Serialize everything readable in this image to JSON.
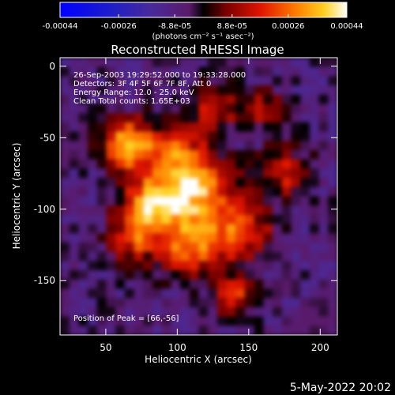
{
  "chart_data": {
    "type": "heatmap",
    "title": "Reconstructed RHESSI Image",
    "xlabel": "Heliocentric X (arcsec)",
    "ylabel": "Heliocentric Y (arcsec)",
    "xlim": [
      18,
      212
    ],
    "ylim": [
      -188,
      6
    ],
    "x_ticks": [
      50,
      100,
      150,
      200
    ],
    "y_ticks": [
      0,
      -50,
      -100,
      -150
    ],
    "colorbar": {
      "ticks": [
        -0.00044,
        -0.00026,
        -8.8e-05,
        8.8e-05,
        0.00026,
        0.00044
      ],
      "tick_labels": [
        "-0.00044",
        "-0.00026",
        "-8.8e-05",
        "8.8e-05",
        "0.00026",
        "0.00044"
      ],
      "range": [
        -0.00044,
        0.00044
      ],
      "unit_label": "(photons cm⁻² s⁻¹ asec⁻²)"
    },
    "annotations": [
      "26-Sep-2003 19:29:52.000 to 19:33:28.000",
      "Detectors: 3F 4F 5F 6F 7F 8F, Att 0",
      "Energy Range: 12.0 - 25.0 keV",
      "Clean     Total counts: 1.65E+03"
    ],
    "peak_label": "Position of Peak = [66,-56]",
    "peak": [
      66,
      -56
    ],
    "colormap": "rainbow-black-blue-purple-red-orange-yellow-white",
    "grid": false
  },
  "footer": {
    "date": "5-May-2022 20:02"
  }
}
